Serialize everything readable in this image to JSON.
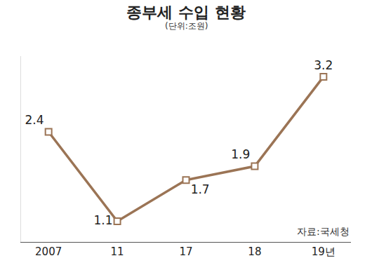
{
  "chart_data": {
    "type": "line",
    "title": "종부세 수입 현황",
    "subtitle": "(단위:조원)",
    "annotations": [
      "자료:국세청"
    ],
    "categories": [
      "2007",
      "11",
      "17",
      "18",
      "19년"
    ],
    "values": [
      2.4,
      1.1,
      1.7,
      1.9,
      3.2
    ],
    "color": "#9b7455",
    "marker": "square",
    "ylim": [
      0.8,
      3.5
    ],
    "data_labels": true,
    "tick_labels": "x",
    "grid": false
  }
}
